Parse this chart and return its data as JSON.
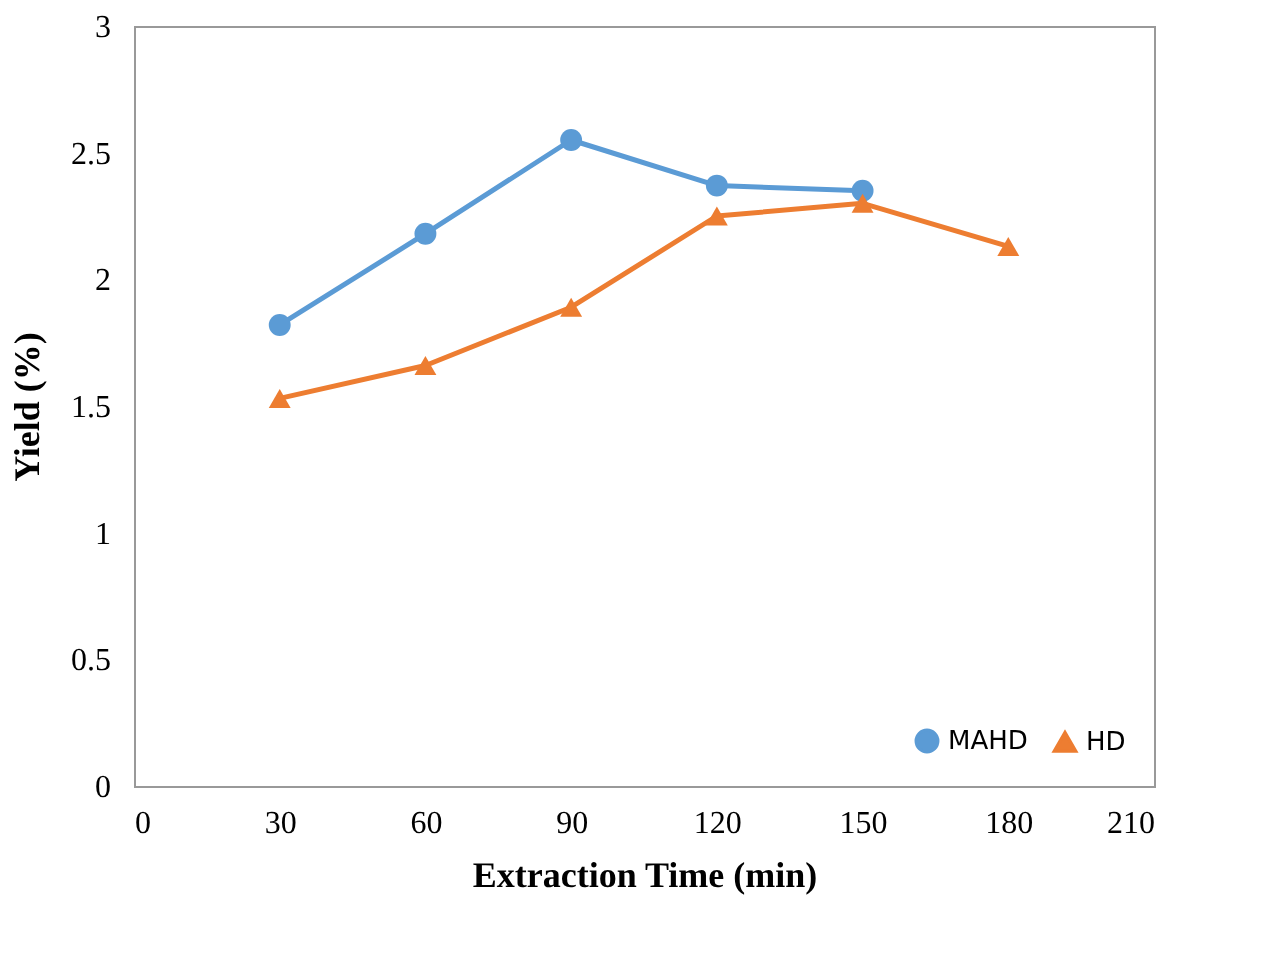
{
  "chart_data": {
    "type": "line",
    "xlabel": "Extraction Time (min)",
    "ylabel": "Yield (%)",
    "xlim": [
      0,
      210
    ],
    "xticks": [
      0,
      30,
      60,
      90,
      120,
      150,
      180,
      210
    ],
    "ylim": [
      0,
      3
    ],
    "yticks": [
      0,
      0.5,
      1,
      1.5,
      2,
      2.5,
      3
    ],
    "grid": false,
    "legend": "bottom right",
    "series": [
      {
        "name": "MAHD",
        "color": "#5b9bd5",
        "marker": "circle",
        "x": [
          30,
          60,
          90,
          120,
          150
        ],
        "values": [
          1.82,
          2.18,
          2.55,
          2.37,
          2.35
        ]
      },
      {
        "name": "HD",
        "color": "#ed7d31",
        "marker": "triangle",
        "x": [
          30,
          60,
          90,
          120,
          150,
          180
        ],
        "values": [
          1.53,
          1.66,
          1.89,
          2.25,
          2.3,
          2.13
        ]
      }
    ]
  }
}
